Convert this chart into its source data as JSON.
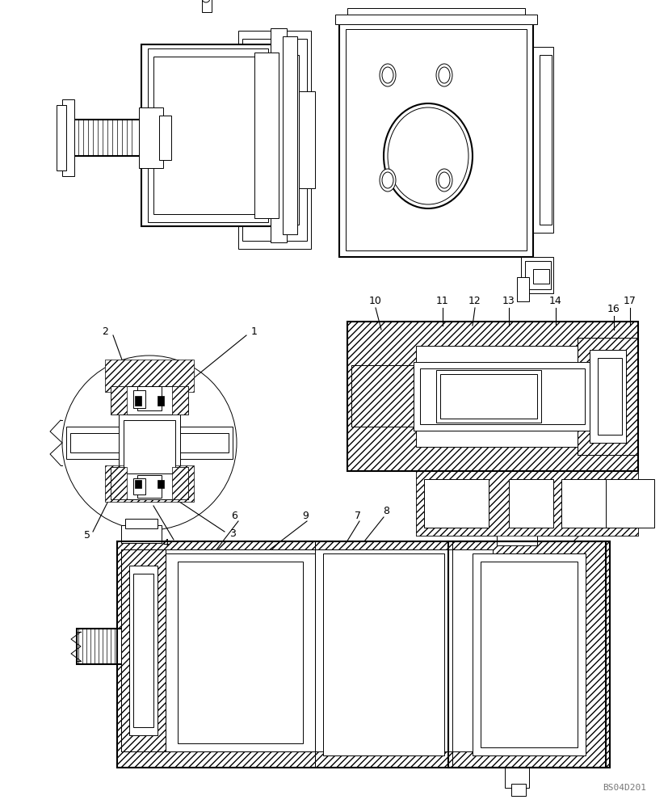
{
  "bg_color": "#ffffff",
  "watermark": "BS04D201",
  "fig_w": 8.28,
  "fig_h": 10.0,
  "dpi": 100
}
